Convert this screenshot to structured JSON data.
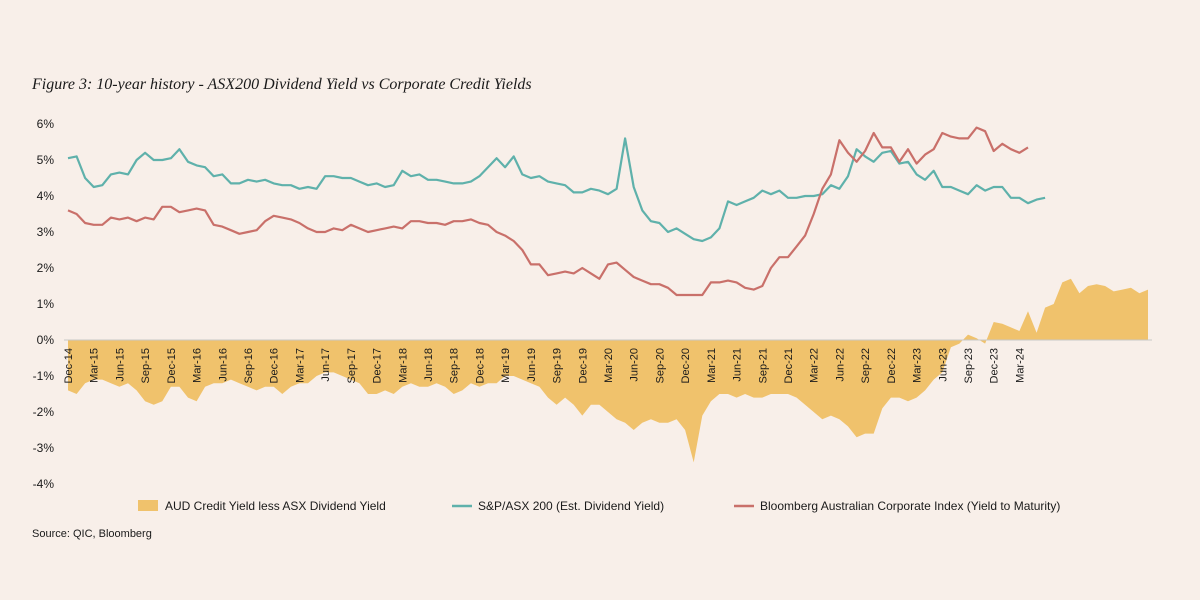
{
  "figure": {
    "title": "Figure 3: 10-year history - ASX200 Dividend Yield vs  Corporate Credit Yields",
    "source": "Source: QIC, Bloomberg"
  },
  "colors": {
    "background": "#f8efe9",
    "spread": "#f0c26c",
    "dividend": "#5fb1ab",
    "credit": "#c9706a",
    "zero_line": "#c8c8c8"
  },
  "chart_data": {
    "type": "line",
    "title": "Figure 3: 10-year history - ASX200 Dividend Yield vs  Corporate Credit Yields",
    "xlabel": "",
    "ylabel": "",
    "ylim": [
      -4,
      6
    ],
    "y_ticks": [
      6,
      5,
      4,
      3,
      2,
      1,
      0,
      -1,
      -2,
      -3,
      -4
    ],
    "y_tick_labels": [
      "6%",
      "5%",
      "4%",
      "3%",
      "2%",
      "1%",
      "0%",
      "-1%",
      "-2%",
      "-3%",
      "-4%"
    ],
    "x_start": "Dec-14",
    "x_frequency": "monthly",
    "x_tick_labels": [
      "Dec-14",
      "Mar-15",
      "Jun-15",
      "Sep-15",
      "Dec-15",
      "Mar-16",
      "Jun-16",
      "Sep-16",
      "Dec-16",
      "Mar-17",
      "Jun-17",
      "Sep-17",
      "Dec-17",
      "Mar-18",
      "Jun-18",
      "Sep-18",
      "Dec-18",
      "Mar-19",
      "Jun-19",
      "Sep-19",
      "Dec-19",
      "Mar-20",
      "Jun-20",
      "Sep-20",
      "Dec-20",
      "Mar-21",
      "Jun-21",
      "Sep-21",
      "Dec-21",
      "Mar-22",
      "Jun-22",
      "Sep-22",
      "Dec-22",
      "Mar-23",
      "Jun-23",
      "Sep-23",
      "Dec-23",
      "Mar-24"
    ],
    "series": [
      {
        "name": "AUD Credit Yield less ASX Dividend Yield",
        "kind": "area",
        "values": [
          -1.4,
          -1.5,
          -1.2,
          -1.1,
          -1.1,
          -1.2,
          -1.3,
          -1.2,
          -1.4,
          -1.7,
          -1.8,
          -1.7,
          -1.3,
          -1.3,
          -1.6,
          -1.7,
          -1.3,
          -1.2,
          -1.2,
          -1.1,
          -1.2,
          -1.3,
          -1.4,
          -1.3,
          -1.3,
          -1.5,
          -1.3,
          -1.2,
          -1.2,
          -1.0,
          -0.9,
          -0.9,
          -1.0,
          -1.1,
          -1.2,
          -1.5,
          -1.5,
          -1.4,
          -1.5,
          -1.3,
          -1.2,
          -1.3,
          -1.3,
          -1.2,
          -1.3,
          -1.5,
          -1.4,
          -1.2,
          -1.3,
          -1.2,
          -1.2,
          -1.0,
          -1.0,
          -1.1,
          -1.2,
          -1.3,
          -1.6,
          -1.8,
          -1.6,
          -1.8,
          -2.1,
          -1.8,
          -1.8,
          -2.0,
          -2.2,
          -2.3,
          -2.5,
          -2.3,
          -2.2,
          -2.3,
          -2.3,
          -2.2,
          -2.5,
          -3.4,
          -2.1,
          -1.7,
          -1.5,
          -1.5,
          -1.6,
          -1.5,
          -1.6,
          -1.6,
          -1.5,
          -1.5,
          -1.5,
          -1.6,
          -1.8,
          -2.0,
          -2.2,
          -2.1,
          -2.2,
          -2.4,
          -2.7,
          -2.6,
          -2.6,
          -1.9,
          -1.6,
          -1.6,
          -1.7,
          -1.6,
          -1.4,
          -1.1,
          -0.9,
          -0.2,
          -0.1,
          0.15,
          0.05,
          -0.1,
          0.5,
          0.45,
          0.35,
          0.25,
          0.8,
          0.2,
          0.9,
          1.0,
          1.6,
          1.7,
          1.3,
          1.5,
          1.55,
          1.5,
          1.35,
          1.4,
          1.45,
          1.3,
          1.4
        ]
      },
      {
        "name": "S&P/ASX 200 (Est. Dividend Yield)",
        "kind": "line",
        "values": [
          5.05,
          5.1,
          4.5,
          4.25,
          4.3,
          4.6,
          4.65,
          4.6,
          5.0,
          5.2,
          5.0,
          5.0,
          5.05,
          5.3,
          4.95,
          4.85,
          4.8,
          4.55,
          4.6,
          4.35,
          4.35,
          4.45,
          4.4,
          4.45,
          4.35,
          4.3,
          4.3,
          4.2,
          4.25,
          4.2,
          4.55,
          4.55,
          4.5,
          4.5,
          4.4,
          4.3,
          4.35,
          4.25,
          4.3,
          4.7,
          4.55,
          4.6,
          4.45,
          4.45,
          4.4,
          4.35,
          4.35,
          4.4,
          4.55,
          4.8,
          5.05,
          4.8,
          5.1,
          4.6,
          4.5,
          4.55,
          4.4,
          4.35,
          4.3,
          4.1,
          4.1,
          4.2,
          4.15,
          4.05,
          4.2,
          5.6,
          4.25,
          3.6,
          3.3,
          3.25,
          3.0,
          3.1,
          2.95,
          2.8,
          2.75,
          2.85,
          3.1,
          3.85,
          3.75,
          3.85,
          3.95,
          4.15,
          4.05,
          4.15,
          3.95,
          3.95,
          4.0,
          4.0,
          4.05,
          4.3,
          4.2,
          4.55,
          5.3,
          5.1,
          4.95,
          5.2,
          5.25,
          4.9,
          4.95,
          4.6,
          4.45,
          4.7,
          4.25,
          4.25,
          4.15,
          4.05,
          4.3,
          4.15,
          4.25,
          4.25,
          3.95,
          3.95,
          3.8,
          3.9,
          3.95
        ]
      },
      {
        "name": "Bloomberg Australian Corporate Index (Yield to Maturity)",
        "kind": "line",
        "values": [
          3.6,
          3.5,
          3.25,
          3.2,
          3.2,
          3.4,
          3.35,
          3.4,
          3.3,
          3.4,
          3.35,
          3.7,
          3.7,
          3.55,
          3.6,
          3.65,
          3.6,
          3.2,
          3.15,
          3.05,
          2.95,
          3.0,
          3.05,
          3.3,
          3.45,
          3.4,
          3.35,
          3.25,
          3.1,
          3.0,
          3.0,
          3.1,
          3.05,
          3.2,
          3.1,
          3.0,
          3.05,
          3.1,
          3.15,
          3.1,
          3.3,
          3.3,
          3.25,
          3.25,
          3.2,
          3.3,
          3.3,
          3.35,
          3.25,
          3.2,
          3.0,
          2.9,
          2.75,
          2.5,
          2.1,
          2.1,
          1.8,
          1.85,
          1.9,
          1.85,
          2.0,
          1.85,
          1.7,
          2.1,
          2.15,
          1.95,
          1.75,
          1.65,
          1.55,
          1.55,
          1.45,
          1.25,
          1.25,
          1.25,
          1.25,
          1.6,
          1.6,
          1.65,
          1.6,
          1.45,
          1.4,
          1.5,
          2.0,
          2.3,
          2.3,
          2.6,
          2.9,
          3.5,
          4.2,
          4.6,
          5.55,
          5.2,
          4.95,
          5.25,
          5.75,
          5.35,
          5.35,
          4.95,
          5.3,
          4.9,
          5.15,
          5.3,
          5.75,
          5.65,
          5.6,
          5.6,
          5.9,
          5.8,
          5.25,
          5.45,
          5.3,
          5.2,
          5.35
        ]
      }
    ],
    "legend": [
      "AUD Credit Yield less ASX Dividend Yield",
      "S&P/ASX 200 (Est. Dividend Yield)",
      "Bloomberg Australian Corporate Index (Yield to Maturity)"
    ],
    "legend_position": "bottom",
    "grid": false
  }
}
